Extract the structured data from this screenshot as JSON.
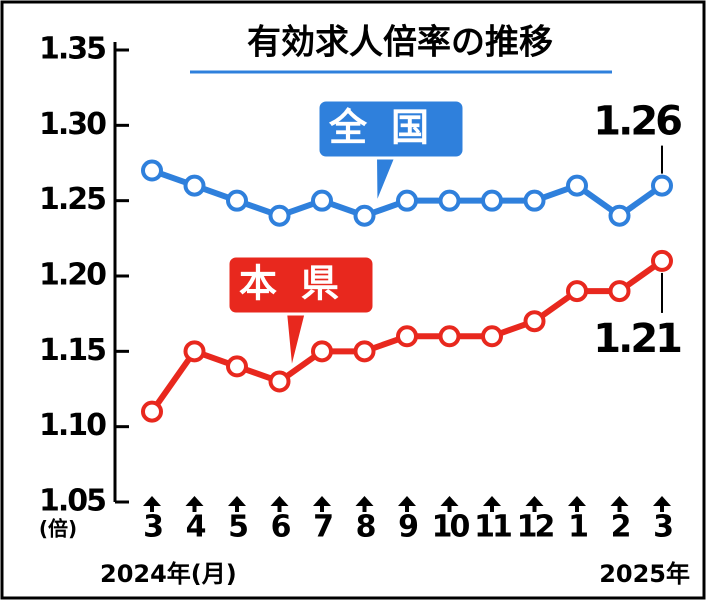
{
  "chart_data": {
    "type": "line",
    "title": "有効求人倍率の推移",
    "y_unit": "(倍)",
    "x_start_label": "2024年(月)",
    "x_end_label": "2025年",
    "categories": [
      "3",
      "4",
      "5",
      "6",
      "7",
      "8",
      "9",
      "10",
      "11",
      "12",
      "1",
      "2",
      "3"
    ],
    "series": [
      {
        "name": "全国",
        "color": "#2f80dc",
        "values": [
          1.27,
          1.26,
          1.25,
          1.24,
          1.25,
          1.24,
          1.25,
          1.25,
          1.25,
          1.25,
          1.26,
          1.24,
          1.26
        ]
      },
      {
        "name": "本県",
        "color": "#e8281e",
        "values": [
          1.11,
          1.15,
          1.14,
          1.13,
          1.15,
          1.15,
          1.16,
          1.16,
          1.16,
          1.17,
          1.19,
          1.19,
          1.21
        ]
      }
    ],
    "ylim": [
      1.05,
      1.35
    ],
    "yticks": [
      1.05,
      {
        "value": 1.1,
        "label": "1.10"
      },
      1.15,
      {
        "value": 1.2,
        "label": "1.20"
      },
      1.25,
      {
        "value": 1.3,
        "label": "1.30"
      },
      1.35
    ]
  }
}
